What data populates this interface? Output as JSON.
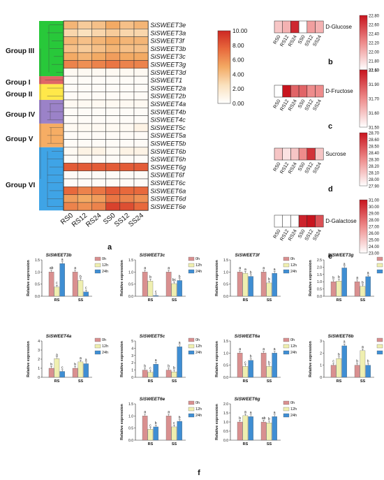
{
  "heatmap": {
    "genes": [
      "SiSWEET3e",
      "SiSWEET3a",
      "SiSWEET3f",
      "SiSWEET3b",
      "SiSWEET3c",
      "SiSWEET3g",
      "SiSWEET3d",
      "SiSWEET1",
      "SiSWEET2a",
      "SiSWEET2b",
      "SiSWEET4a",
      "SiSWEET4b",
      "SiSWEET4c",
      "SiSWEET5c",
      "SiSWEET5a",
      "SiSWEET5b",
      "SiSWEET6b",
      "SiSWEET6h",
      "SiSWEET6g",
      "SiSWEET6f",
      "SiSWEET6c",
      "SiSWEET6a",
      "SiSWEET6d",
      "SiSWEET6e"
    ],
    "samples": [
      "RS0",
      "RS12",
      "RS24",
      "SS0",
      "SS12",
      "SS24"
    ],
    "values": [
      [
        4.5,
        3.5,
        4.0,
        5.0,
        4.0,
        4.5
      ],
      [
        3.0,
        2.5,
        3.0,
        3.5,
        3.0,
        3.0
      ],
      [
        4.5,
        4.0,
        4.5,
        5.0,
        4.5,
        4.5
      ],
      [
        4.0,
        3.5,
        4.0,
        4.5,
        4.0,
        4.0
      ],
      [
        5.0,
        4.5,
        5.0,
        5.5,
        5.0,
        5.0
      ],
      [
        6.5,
        6.0,
        6.5,
        7.0,
        6.5,
        6.5
      ],
      [
        0.5,
        0.5,
        0.5,
        0.5,
        0.5,
        0.5
      ],
      [
        0.3,
        0.3,
        0.3,
        0.3,
        0.3,
        0.3
      ],
      [
        0.3,
        0.3,
        0.3,
        0.3,
        0.3,
        0.3
      ],
      [
        0.3,
        0.3,
        0.3,
        0.3,
        0.3,
        0.3
      ],
      [
        0.5,
        0.5,
        0.5,
        0.5,
        0.5,
        0.5
      ],
      [
        0.3,
        0.3,
        0.3,
        0.3,
        0.3,
        0.3
      ],
      [
        0.3,
        0.3,
        0.3,
        0.3,
        0.3,
        0.3
      ],
      [
        0.5,
        0.5,
        0.5,
        0.5,
        0.5,
        1.0
      ],
      [
        0.3,
        0.3,
        0.3,
        0.3,
        0.3,
        0.3
      ],
      [
        0.3,
        0.3,
        0.3,
        0.3,
        0.3,
        0.3
      ],
      [
        0.5,
        1.0,
        1.0,
        0.5,
        1.0,
        1.0
      ],
      [
        0.3,
        0.3,
        0.3,
        0.3,
        0.3,
        0.3
      ],
      [
        8.0,
        8.0,
        8.0,
        8.0,
        8.0,
        8.0
      ],
      [
        0.3,
        0.3,
        0.3,
        0.3,
        0.3,
        0.3
      ],
      [
        0.3,
        0.3,
        0.3,
        0.3,
        0.3,
        0.3
      ],
      [
        7.5,
        6.5,
        7.0,
        8.0,
        7.5,
        7.5
      ],
      [
        5.5,
        5.0,
        5.5,
        7.0,
        6.5,
        6.0
      ],
      [
        6.5,
        6.0,
        6.5,
        9.0,
        8.5,
        7.5
      ]
    ],
    "groups": [
      "Group III",
      "Group I",
      "Group II",
      "Group IV",
      "Group V",
      "Group VI"
    ],
    "colorbar_ticks": [
      "10.00",
      "8.00",
      "6.00",
      "4.00",
      "2.00",
      "0.00"
    ],
    "panel_label": "a"
  },
  "sugars": [
    {
      "name": "D-Glucose",
      "panel": "b",
      "values": [
        21.9,
        22.0,
        22.7,
        21.6,
        22.1,
        22.0
      ],
      "ticks": [
        "22.80",
        "22.60",
        "22.40",
        "22.20",
        "22.00",
        "21.80",
        "21.60"
      ]
    },
    {
      "name": "D-Fructose",
      "panel": "c",
      "values": [
        31.5,
        32.1,
        31.9,
        31.9,
        31.8,
        31.8
      ],
      "ticks": [
        "32.10",
        "31.90",
        "31.70",
        "31.60",
        "31.50"
      ]
    },
    {
      "name": "Sucrose",
      "panel": "d",
      "values": [
        28.1,
        28.0,
        28.1,
        28.3,
        28.6,
        28.1
      ],
      "ticks": [
        "28.70",
        "28.60",
        "28.50",
        "28.40",
        "28.30",
        "28.20",
        "28.10",
        "28.00",
        "27.90"
      ]
    },
    {
      "name": "D-Galactose",
      "panel": "e",
      "values": [
        23.0,
        23.0,
        23.0,
        30.5,
        31.0,
        29.0
      ],
      "ticks": [
        "31.00",
        "30.00",
        "29.00",
        "28.00",
        "27.00",
        "26.00",
        "25.00",
        "24.00",
        "23.00"
      ]
    }
  ],
  "legend": [
    "0h",
    "12h",
    "24h"
  ],
  "bar_colors": [
    "#d99090",
    "#efefb0",
    "#3f8ed3"
  ],
  "ylabel": "Relative expression",
  "panel_f_label": "f",
  "chart_data": [
    {
      "type": "bar",
      "title": "SiSWEET3b",
      "categories": [
        "RS",
        "SS"
      ],
      "ylim": [
        0,
        1.5
      ],
      "yticks": [
        "0.0",
        "0.5",
        "1.0",
        "1.5"
      ],
      "series": [
        {
          "name": "0h",
          "values": [
            1.0,
            1.0
          ]
        },
        {
          "name": "12h",
          "values": [
            0.38,
            0.65
          ]
        },
        {
          "name": "24h",
          "values": [
            1.35,
            0.18
          ]
        }
      ],
      "letters": [
        [
          "ab",
          "c",
          "a"
        ],
        [
          "a",
          "b",
          "c"
        ]
      ]
    },
    {
      "type": "bar",
      "title": "SiSWEET3c",
      "categories": [
        "RS",
        "SS"
      ],
      "ylim": [
        0,
        1.5
      ],
      "yticks": [
        "0.0",
        "0.5",
        "1.0",
        "1.5"
      ],
      "series": [
        {
          "name": "0h",
          "values": [
            1.0,
            1.0
          ]
        },
        {
          "name": "12h",
          "values": [
            0.63,
            0.52
          ]
        },
        {
          "name": "24h",
          "values": [
            0.03,
            0.65
          ]
        }
      ],
      "letters": [
        [
          "a",
          "b",
          "c"
        ],
        [
          "a",
          "bc",
          "b"
        ]
      ]
    },
    {
      "type": "bar",
      "title": "SiSWEET3f",
      "categories": [
        "RS",
        "SS"
      ],
      "ylim": [
        0,
        1.5
      ],
      "yticks": [
        "0.0",
        "0.5",
        "1.0",
        "1.5"
      ],
      "series": [
        {
          "name": "0h",
          "values": [
            1.0,
            1.0
          ]
        },
        {
          "name": "12h",
          "values": [
            0.95,
            0.55
          ]
        },
        {
          "name": "24h",
          "values": [
            0.82,
            0.95
          ]
        }
      ],
      "letters": [
        [
          "a",
          "a",
          "b"
        ],
        [
          "a",
          "b",
          "a"
        ]
      ]
    },
    {
      "type": "bar",
      "title": "SiSWEET3g",
      "categories": [
        "RS",
        "SS"
      ],
      "ylim": [
        0,
        2.5
      ],
      "yticks": [
        "0.0",
        "0.5",
        "1.0",
        "1.5",
        "2.0",
        "2.5"
      ],
      "series": [
        {
          "name": "0h",
          "values": [
            1.0,
            1.0
          ]
        },
        {
          "name": "12h",
          "values": [
            1.05,
            0.68
          ]
        },
        {
          "name": "24h",
          "values": [
            1.95,
            1.35
          ]
        }
      ],
      "letters": [
        [
          "b",
          "b",
          "a"
        ],
        [
          "a",
          "b",
          "a"
        ]
      ]
    },
    {
      "type": "bar",
      "title": "SiSWEET4a",
      "categories": [
        "RS",
        "SS"
      ],
      "ylim": [
        0,
        4
      ],
      "yticks": [
        "0",
        "1",
        "2",
        "3",
        "4"
      ],
      "series": [
        {
          "name": "0h",
          "values": [
            1.0,
            1.0
          ]
        },
        {
          "name": "12h",
          "values": [
            2.05,
            1.7
          ]
        },
        {
          "name": "24h",
          "values": [
            0.65,
            1.5
          ]
        }
      ],
      "letters": [
        [
          "b",
          "a",
          "c"
        ],
        [
          "b",
          "a",
          "a"
        ]
      ]
    },
    {
      "type": "bar",
      "title": "SiSWEET5c",
      "categories": [
        "RS",
        "SS"
      ],
      "ylim": [
        0,
        5
      ],
      "yticks": [
        "0",
        "1",
        "2",
        "3",
        "4",
        "5"
      ],
      "series": [
        {
          "name": "0h",
          "values": [
            1.0,
            1.0
          ]
        },
        {
          "name": "12h",
          "values": [
            0.7,
            0.75
          ]
        },
        {
          "name": "24h",
          "values": [
            1.8,
            4.2
          ]
        }
      ],
      "letters": [
        [
          "b",
          "c",
          "a"
        ],
        [
          "b",
          "b",
          "a"
        ]
      ]
    },
    {
      "type": "bar",
      "title": "SiSWEET6a",
      "categories": [
        "RS",
        "SS"
      ],
      "ylim": [
        0,
        1.5
      ],
      "yticks": [
        "0.0",
        "0.5",
        "1.0",
        "1.5"
      ],
      "series": [
        {
          "name": "0h",
          "values": [
            1.0,
            1.0
          ]
        },
        {
          "name": "12h",
          "values": [
            0.45,
            0.45
          ]
        },
        {
          "name": "24h",
          "values": [
            0.7,
            1.0
          ]
        }
      ],
      "letters": [
        [
          "a",
          "c",
          "b"
        ],
        [
          "a",
          "b",
          "a"
        ]
      ]
    },
    {
      "type": "bar",
      "title": "SiSWEET6b",
      "categories": [
        "RS",
        "SS"
      ],
      "ylim": [
        0,
        3
      ],
      "yticks": [
        "0",
        "1",
        "2",
        "3"
      ],
      "series": [
        {
          "name": "0h",
          "values": [
            1.0,
            1.0
          ]
        },
        {
          "name": "12h",
          "values": [
            1.55,
            2.2
          ]
        },
        {
          "name": "24h",
          "values": [
            2.6,
            1.0
          ]
        }
      ],
      "letters": [
        [
          "c",
          "b",
          "a"
        ],
        [
          "b",
          "a",
          "b"
        ]
      ]
    },
    {
      "type": "bar",
      "title": "SiSWEET6e",
      "categories": [
        "RS",
        "SS"
      ],
      "ylim": [
        0,
        1.5
      ],
      "yticks": [
        "0.0",
        "0.5",
        "1.0",
        "1.5"
      ],
      "series": [
        {
          "name": "0h",
          "values": [
            1.0,
            1.0
          ]
        },
        {
          "name": "12h",
          "values": [
            0.45,
            0.55
          ]
        },
        {
          "name": "24h",
          "values": [
            0.55,
            0.78
          ]
        }
      ],
      "letters": [
        [
          "a",
          "c",
          "b"
        ],
        [
          "a",
          "c",
          "b"
        ]
      ]
    },
    {
      "type": "bar",
      "title": "SiSWEET6g",
      "categories": [
        "RS",
        "SS"
      ],
      "ylim": [
        0,
        2
      ],
      "yticks": [
        "0.0",
        "0.5",
        "1.0",
        "1.5",
        "2.0"
      ],
      "series": [
        {
          "name": "0h",
          "values": [
            1.0,
            1.0
          ]
        },
        {
          "name": "12h",
          "values": [
            1.35,
            0.95
          ]
        },
        {
          "name": "24h",
          "values": [
            1.3,
            1.3
          ]
        }
      ],
      "letters": [
        [
          "b",
          "a",
          "a"
        ],
        [
          "ab",
          "b",
          "a"
        ]
      ]
    }
  ]
}
